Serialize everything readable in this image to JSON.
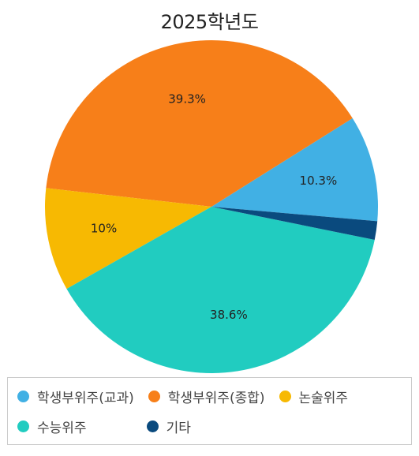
{
  "chart_data": {
    "type": "pie",
    "title": "2025학년도",
    "slices": [
      {
        "name": "학생부위주(교과)",
        "value": 10.3,
        "label": "10.3%",
        "color": "#41B0E4"
      },
      {
        "name": "학생부위주(종합)",
        "value": 39.3,
        "label": "39.3%",
        "color": "#F77F19"
      },
      {
        "name": "논술위주",
        "value": 10.0,
        "label": "10%",
        "color": "#F7B902"
      },
      {
        "name": "수능위주",
        "value": 38.6,
        "label": "38.6%",
        "color": "#21CCC0"
      },
      {
        "name": "기타",
        "value": 1.8,
        "label": "",
        "color": "#0A4A7E"
      }
    ],
    "legend_placement": "bottom"
  },
  "legend": {
    "items": [
      {
        "label": "학생부위주(교과)",
        "color": "#41B0E4"
      },
      {
        "label": "학생부위주(종합)",
        "color": "#F77F19"
      },
      {
        "label": "논술위주",
        "color": "#F7B902"
      },
      {
        "label": "수능위주",
        "color": "#21CCC0"
      },
      {
        "label": "기타",
        "color": "#0A4A7E"
      }
    ]
  }
}
